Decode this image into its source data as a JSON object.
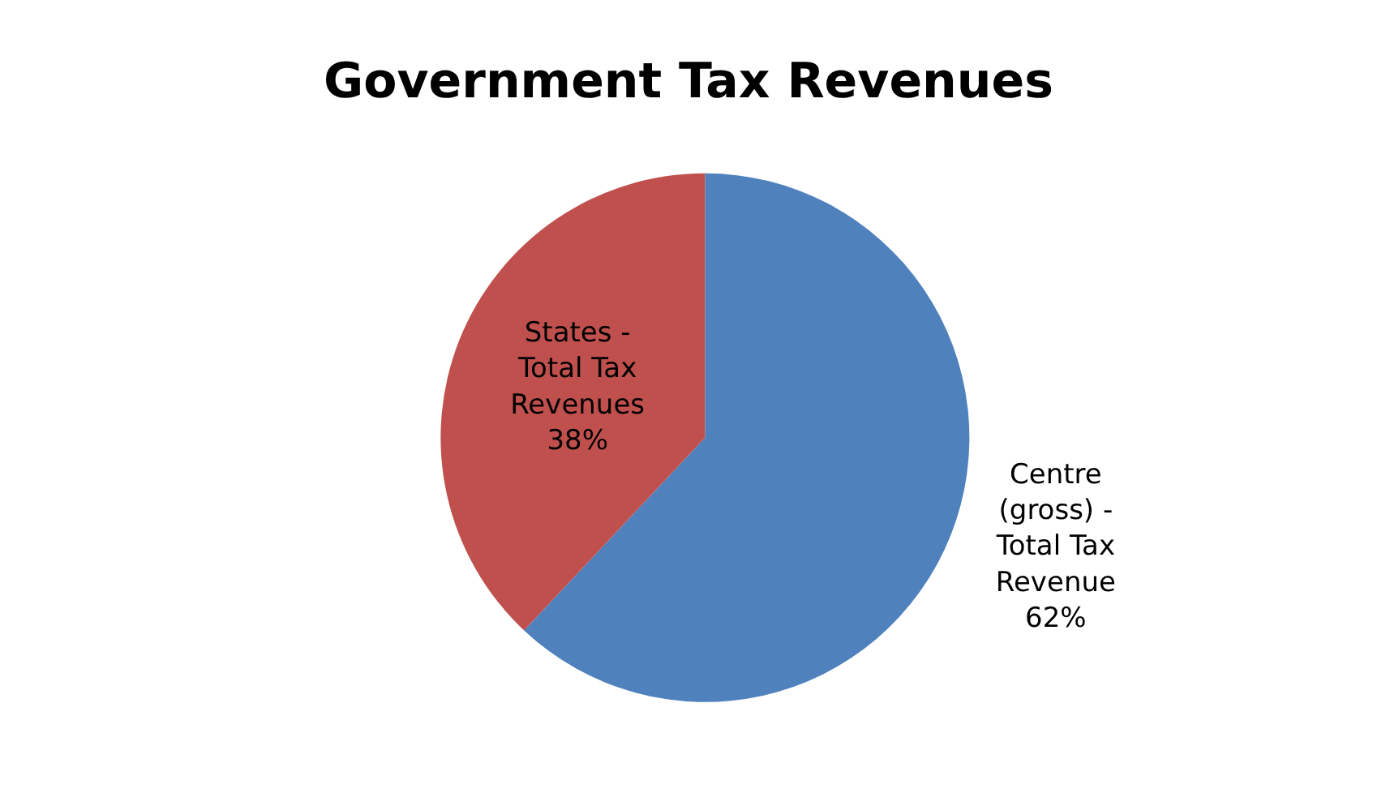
{
  "chart_data": {
    "type": "pie",
    "title": "Government Tax Revenues",
    "categories": [
      "Centre (gross) - Total Tax Revenue",
      "States - Total Tax Revenues"
    ],
    "values": [
      62,
      38
    ],
    "colors": [
      "#4f81bd",
      "#c0504d"
    ],
    "value_labels": [
      "62%",
      "38%"
    ],
    "legend": false
  }
}
